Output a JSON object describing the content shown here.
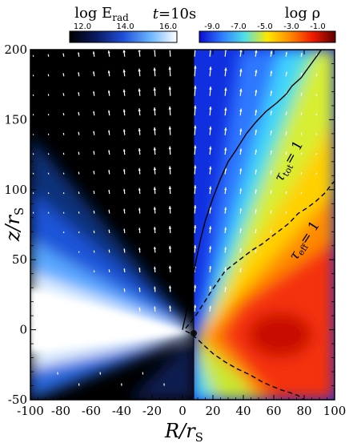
{
  "chart_data": {
    "type": "heatmap",
    "title": "t=10s",
    "title_var": "t",
    "title_rest": "=10s",
    "xlabel": {
      "main": "R/r",
      "sub": "S"
    },
    "ylabel": {
      "main": "z/r",
      "sub": "S"
    },
    "xlim": [
      -100,
      100
    ],
    "ylim": [
      -50,
      200
    ],
    "xticks": [
      -100,
      -80,
      -60,
      -40,
      -20,
      0,
      20,
      40,
      60,
      80,
      100
    ],
    "yticks": [
      -50,
      0,
      50,
      100,
      150,
      200
    ],
    "grid": false,
    "panels": [
      {
        "name": "radiation energy density",
        "side": "left",
        "colorbar": {
          "label_main": "log E",
          "label_sub": "rad",
          "ticks": [
            "12.0",
            "14.0",
            "16.0"
          ],
          "range": [
            12.0,
            16.0
          ],
          "colors": [
            "#000000",
            "#0a1a60",
            "#1f4fd8",
            "#6ab4ff",
            "#ffffff"
          ]
        }
      },
      {
        "name": "density",
        "side": "right",
        "colorbar": {
          "label_main": "log ρ",
          "label_sub": "",
          "ticks": [
            "-9.0",
            "-7.0",
            "-5.0",
            "-3.0",
            "-1.0"
          ],
          "range": [
            -9.0,
            -1.0
          ],
          "colors": [
            "#0a0ad0",
            "#2e7cff",
            "#4fe0e8",
            "#ffe800",
            "#ff8a00",
            "#f01a00",
            "#5a0000"
          ]
        }
      }
    ],
    "curves": [
      {
        "label_main": "τ",
        "label_sub": "tot",
        "label_rest": "= 1",
        "style": "solid",
        "R": [
          0,
          3,
          6,
          9,
          12,
          15,
          20,
          25,
          30,
          35,
          42,
          48,
          55,
          62,
          68,
          72,
          78,
          82,
          86,
          90,
          93
        ],
        "z": [
          0,
          15,
          32,
          50,
          65,
          78,
          94,
          108,
          120,
          128,
          140,
          148,
          156,
          162,
          168,
          174,
          180,
          186,
          192,
          198,
          203
        ]
      },
      {
        "label_main": "τ",
        "label_sub": "eff",
        "label_rest": "= 1",
        "style": "dashed",
        "R": [
          2,
          5,
          8,
          11,
          14,
          18,
          23,
          28,
          34,
          40,
          46,
          52,
          58,
          64,
          70,
          76,
          82,
          88,
          94,
          98,
          101
        ],
        "z": [
          1,
          5,
          9,
          14,
          19,
          26,
          34,
          42,
          47,
          52,
          57,
          61,
          66,
          71,
          76,
          83,
          87,
          92,
          98,
          104,
          107
        ]
      },
      {
        "label_main": "",
        "label_sub": "",
        "label_rest": "",
        "style": "dashed",
        "R": [
          2,
          6,
          10,
          15,
          20,
          28,
          36,
          44,
          52,
          58,
          65,
          71,
          76,
          80
        ],
        "z": [
          -1,
          -3,
          -7,
          -12,
          -17,
          -23,
          -28,
          -32,
          -37,
          -40,
          -43,
          -45,
          -47,
          -50
        ]
      }
    ],
    "colors": {
      "axes": "#000000",
      "arrows": "#ffffff"
    }
  }
}
